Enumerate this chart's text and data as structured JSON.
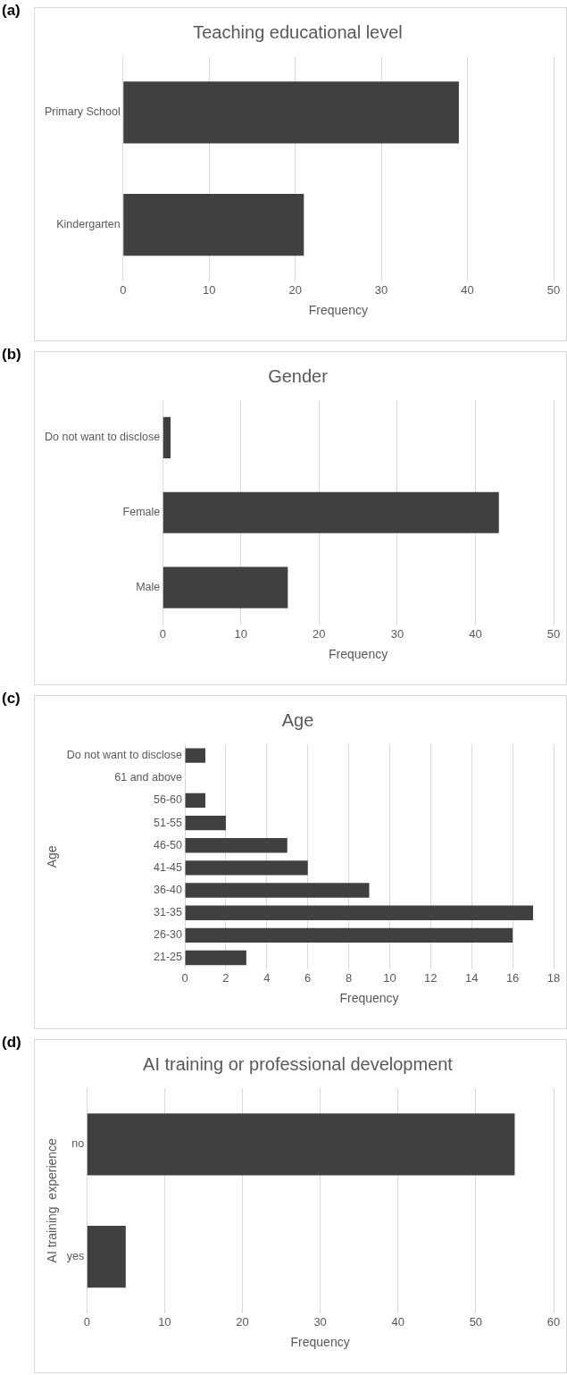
{
  "chart_data": [
    {
      "type": "bar",
      "orientation": "horizontal",
      "title": "Teaching educational level",
      "xlabel": "Frequency",
      "annotations": [
        "(a)"
      ],
      "categories": [
        "Primary School",
        "Kindergarten"
      ],
      "values": [
        39,
        21
      ],
      "color": "#404040",
      "xlim": [
        0,
        50
      ],
      "xticks": [
        0,
        10,
        20,
        30,
        40,
        50
      ],
      "grid": "x"
    },
    {
      "type": "bar",
      "orientation": "horizontal",
      "title": "Gender",
      "xlabel": "Frequency",
      "annotations": [
        "(b)"
      ],
      "categories": [
        "Do not want to disclose",
        "Female",
        "Male"
      ],
      "values": [
        1,
        43,
        16
      ],
      "color": "#404040",
      "xlim": [
        0,
        50
      ],
      "xticks": [
        0,
        10,
        20,
        30,
        40,
        50
      ],
      "grid": "x"
    },
    {
      "type": "bar",
      "orientation": "horizontal",
      "title": "Age",
      "xlabel": "Frequency",
      "ylabel": "Age",
      "annotations": [
        "(c)"
      ],
      "categories": [
        "Do not want to disclose",
        "61 and above",
        "56-60",
        "51-55",
        "46-50",
        "41-45",
        "36-40",
        "31-35",
        "26-30",
        "21-25"
      ],
      "values": [
        1,
        0,
        1,
        2,
        5,
        6,
        9,
        17,
        16,
        3
      ],
      "color": "#404040",
      "xlim": [
        0,
        18
      ],
      "xticks": [
        0,
        2,
        4,
        6,
        8,
        10,
        12,
        14,
        16,
        18
      ],
      "grid": "x"
    },
    {
      "type": "bar",
      "orientation": "horizontal",
      "title": "AI training or professional development",
      "xlabel": "Frequency",
      "ylabel": "AI training  experience",
      "annotations": [
        "(d)"
      ],
      "categories": [
        "no",
        "yes"
      ],
      "values": [
        55,
        5
      ],
      "color": "#404040",
      "xlim": [
        0,
        60
      ],
      "xticks": [
        0,
        10,
        20,
        30,
        40,
        50,
        60
      ],
      "grid": "x"
    }
  ]
}
